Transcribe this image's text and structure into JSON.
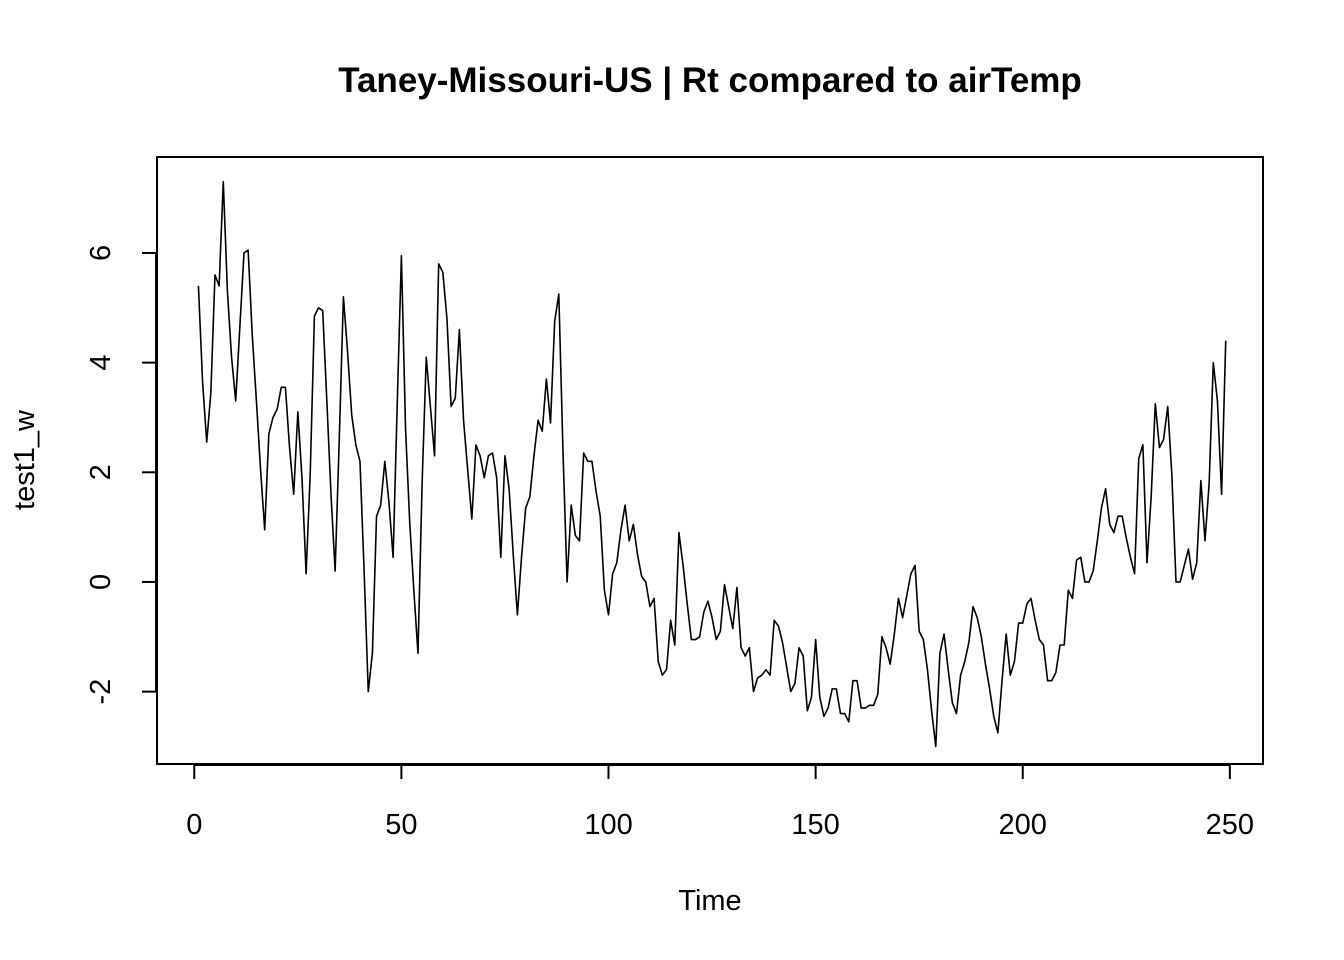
{
  "chart_data": {
    "type": "line",
    "title": "Taney-Missouri-US | Rt compared to airTemp",
    "xlabel": "Time",
    "ylabel": "test1_w",
    "xlim": [
      -9,
      258
    ],
    "ylim": [
      -3.32,
      7.75
    ],
    "x_ticks": [
      "0",
      "50",
      "100",
      "150",
      "200",
      "250"
    ],
    "y_ticks": [
      "-2",
      "0",
      "2",
      "4",
      "6"
    ],
    "grid": false,
    "series": [
      {
        "line_color": "#000000",
        "x_start": 1,
        "values": [
          5.4,
          3.65,
          2.55,
          3.45,
          5.6,
          5.4,
          7.3,
          5.3,
          4.1,
          3.3,
          4.65,
          6.0,
          6.05,
          4.5,
          3.3,
          2.05,
          0.95,
          2.7,
          3.0,
          3.15,
          3.55,
          3.55,
          2.45,
          1.6,
          3.1,
          1.9,
          0.15,
          2.0,
          4.85,
          5.0,
          4.95,
          3.3,
          1.6,
          0.2,
          2.6,
          5.2,
          4.2,
          3.05,
          2.5,
          2.2,
          0.2,
          -2.0,
          -1.3,
          1.2,
          1.4,
          2.2,
          1.45,
          0.45,
          3.25,
          5.95,
          2.8,
          1.1,
          -0.15,
          -1.3,
          1.8,
          4.1,
          3.2,
          2.3,
          5.8,
          5.65,
          4.8,
          3.2,
          3.35,
          4.6,
          2.95,
          2.05,
          1.15,
          2.5,
          2.3,
          1.9,
          2.3,
          2.35,
          1.9,
          0.45,
          2.3,
          1.7,
          0.5,
          -0.6,
          0.45,
          1.35,
          1.55,
          2.3,
          2.95,
          2.75,
          3.7,
          2.9,
          4.75,
          5.25,
          2.4,
          0.0,
          1.4,
          0.85,
          0.75,
          2.35,
          2.2,
          2.2,
          1.65,
          1.2,
          -0.15,
          -0.6,
          0.15,
          0.35,
          0.95,
          1.4,
          0.75,
          1.05,
          0.5,
          0.1,
          0.0,
          -0.45,
          -0.3,
          -1.45,
          -1.7,
          -1.6,
          -0.7,
          -1.15,
          0.9,
          0.3,
          -0.4,
          -1.05,
          -1.05,
          -1.0,
          -0.55,
          -0.35,
          -0.65,
          -1.05,
          -0.9,
          -0.05,
          -0.45,
          -0.85,
          -0.1,
          -1.2,
          -1.35,
          -1.2,
          -2.0,
          -1.75,
          -1.7,
          -1.6,
          -1.7,
          -0.7,
          -0.8,
          -1.1,
          -1.55,
          -2.0,
          -1.85,
          -1.2,
          -1.35,
          -2.35,
          -2.1,
          -1.05,
          -2.1,
          -2.45,
          -2.3,
          -1.95,
          -1.95,
          -2.4,
          -2.4,
          -2.55,
          -1.8,
          -1.8,
          -2.3,
          -2.3,
          -2.25,
          -2.25,
          -2.05,
          -1.0,
          -1.2,
          -1.5,
          -0.95,
          -0.3,
          -0.65,
          -0.25,
          0.15,
          0.3,
          -0.9,
          -1.05,
          -1.6,
          -2.35,
          -3.0,
          -1.3,
          -0.95,
          -1.6,
          -2.2,
          -2.4,
          -1.7,
          -1.45,
          -1.1,
          -0.45,
          -0.65,
          -1.0,
          -1.5,
          -1.95,
          -2.45,
          -2.75,
          -1.8,
          -0.95,
          -1.7,
          -1.45,
          -0.75,
          -0.75,
          -0.4,
          -0.3,
          -0.7,
          -1.05,
          -1.15,
          -1.8,
          -1.8,
          -1.65,
          -1.15,
          -1.15,
          -0.15,
          -0.3,
          0.4,
          0.45,
          0.0,
          0.0,
          0.2,
          0.75,
          1.35,
          1.7,
          1.05,
          0.9,
          1.2,
          1.2,
          0.8,
          0.45,
          0.15,
          2.25,
          2.5,
          0.35,
          1.55,
          3.25,
          2.45,
          2.6,
          3.2,
          1.95,
          0.0,
          0.0,
          0.3,
          0.6,
          0.05,
          0.35,
          1.85,
          0.75,
          1.8,
          4.0,
          3.3,
          1.6,
          4.4
        ]
      }
    ]
  }
}
